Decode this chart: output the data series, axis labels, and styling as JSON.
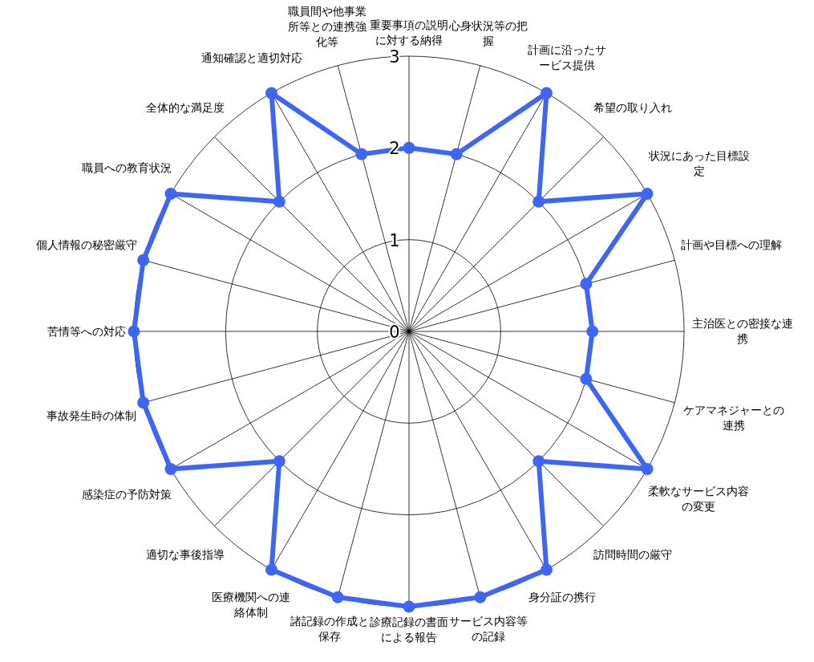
{
  "chart_data": {
    "type": "radar",
    "categories": [
      "重要事項の説明に対する納得",
      "心身状況等の把握",
      "計画に沿ったサービス提供",
      "希望の取り入れ",
      "状況にあった目標設定",
      "計画や目標への理解",
      "主治医との密接な連携",
      "ケアマネジャーとの連携",
      "柔軟なサービス内容の変更",
      "訪問時間の厳守",
      "身分証の携行",
      "サービス内容等の記録",
      "診療記録の書面による報告",
      "諸記録の作成と保存",
      "医療機関への連絡体制",
      "適切な事後指導",
      "感染症の予防対策",
      "事故発生時の体制",
      "苦情等への対応",
      "個人情報の秘密厳守",
      "職員への教育状況",
      "全体的な満足度",
      "通知確認と適切対応",
      "職員間や他事業所等との連携強化等"
    ],
    "series": [
      {
        "color": "#3d66f5",
        "values": [
          2,
          2,
          3,
          2,
          3,
          2,
          2,
          2,
          3,
          2,
          3,
          3,
          3,
          3,
          3,
          2,
          3,
          3,
          3,
          3,
          3,
          2,
          3,
          2
        ]
      }
    ],
    "ylim": [
      0,
      3
    ],
    "yticks": [
      0,
      1,
      2,
      3
    ],
    "grid": true,
    "marker": "circle",
    "line_style": "solid"
  }
}
